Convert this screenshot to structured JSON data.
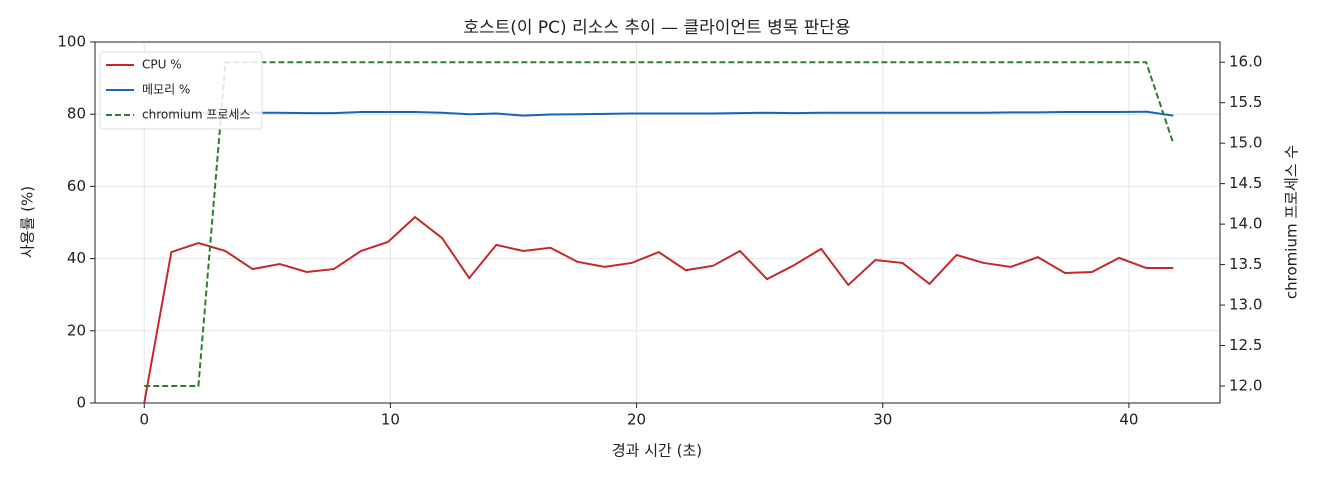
{
  "chart_data": {
    "type": "line",
    "title": "호스트(이 PC) 리소스 추이 — 클라이언트 병목 판단용",
    "xlabel": "경과 시간 (초)",
    "ylabel": "사용률 (%)",
    "y2label": "chromium 프로세스 수",
    "x": [
      0,
      1.1,
      2.2,
      3.3,
      4.4,
      5.5,
      6.6,
      7.7,
      8.8,
      9.9,
      11.0,
      12.1,
      13.2,
      14.3,
      15.4,
      16.5,
      17.6,
      18.7,
      19.8,
      20.9,
      22.0,
      23.1,
      24.2,
      25.3,
      26.4,
      27.5,
      28.6,
      29.7,
      30.8,
      31.9,
      33.0,
      34.1,
      35.2,
      36.3,
      37.4,
      38.5,
      39.6,
      40.7,
      41.8
    ],
    "series": [
      {
        "name": "CPU %",
        "color": "#c62828",
        "dash": false,
        "values": [
          0,
          41.8,
          44.3,
          42.1,
          37.1,
          38.5,
          36.3,
          37.1,
          42.1,
          44.6,
          51.5,
          45.7,
          34.6,
          43.8,
          42.1,
          43.0,
          39.1,
          37.7,
          38.8,
          41.8,
          36.8,
          38.0,
          42.1,
          34.3,
          38.2,
          42.7,
          32.7,
          39.6,
          38.8,
          33.0,
          41.0,
          38.8,
          37.7,
          40.4,
          36.0,
          36.3,
          40.2,
          37.4,
          37.4
        ]
      },
      {
        "name": "메모리 %",
        "color": "#1565c0",
        "dash": false,
        "values": [
          80.3,
          80.4,
          80.4,
          80.5,
          80.4,
          80.4,
          80.3,
          80.3,
          80.6,
          80.6,
          80.6,
          80.4,
          80.0,
          80.2,
          79.6,
          79.9,
          80.0,
          80.1,
          80.2,
          80.2,
          80.2,
          80.2,
          80.3,
          80.4,
          80.3,
          80.4,
          80.4,
          80.4,
          80.4,
          80.4,
          80.4,
          80.4,
          80.5,
          80.5,
          80.6,
          80.6,
          80.6,
          80.7,
          79.6
        ]
      },
      {
        "name": "chromium 프로세스",
        "color": "#2e7d32",
        "dash": true,
        "axis": "y2",
        "values": [
          12,
          12,
          12,
          16,
          16,
          16,
          16,
          16,
          16,
          16,
          16,
          16,
          16,
          16,
          16,
          16,
          16,
          16,
          16,
          16,
          16,
          16,
          16,
          16,
          16,
          16,
          16,
          16,
          16,
          16,
          16,
          16,
          16,
          16,
          16,
          16,
          16,
          16,
          15
        ]
      }
    ],
    "xlim": [
      -2,
      43.7
    ],
    "xticks": [
      0,
      10,
      20,
      30,
      40
    ],
    "ylim": [
      0,
      100
    ],
    "yticks": [
      0,
      20,
      40,
      60,
      80,
      100
    ],
    "y2lim": [
      11.79,
      16.25
    ],
    "y2ticks": [
      {
        "value": 12,
        "label": "12.0"
      },
      12.5,
      {
        "value": 13,
        "label": "13.0"
      },
      13.5,
      {
        "value": 14,
        "label": "14.0"
      },
      14.5,
      {
        "value": 15,
        "label": "15.0"
      },
      15.5,
      {
        "value": 16,
        "label": "16.0"
      }
    ],
    "grid": true,
    "legend": "upper left"
  }
}
